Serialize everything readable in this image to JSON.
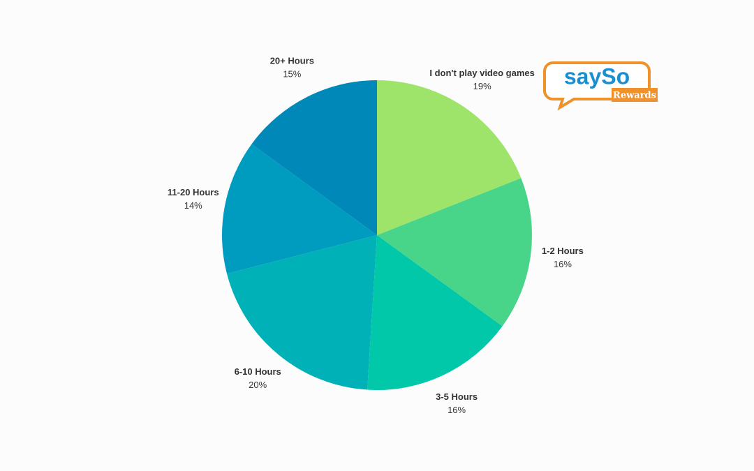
{
  "chart_data": {
    "type": "pie",
    "categories": [
      "I don't play video games",
      "1-2 Hours",
      "3-5 Hours",
      "6-10 Hours",
      "11-20 Hours",
      "20+ Hours"
    ],
    "values": [
      19,
      16,
      16,
      20,
      14,
      15
    ],
    "value_labels": [
      "19%",
      "16%",
      "16%",
      "20%",
      "14%",
      "15%"
    ],
    "colors": [
      "#9ee36a",
      "#48d58a",
      "#00c8a8",
      "#00b1b8",
      "#009cc0",
      "#0088b8"
    ]
  },
  "logo": {
    "name": "saySo",
    "tagline": "Rewards"
  }
}
